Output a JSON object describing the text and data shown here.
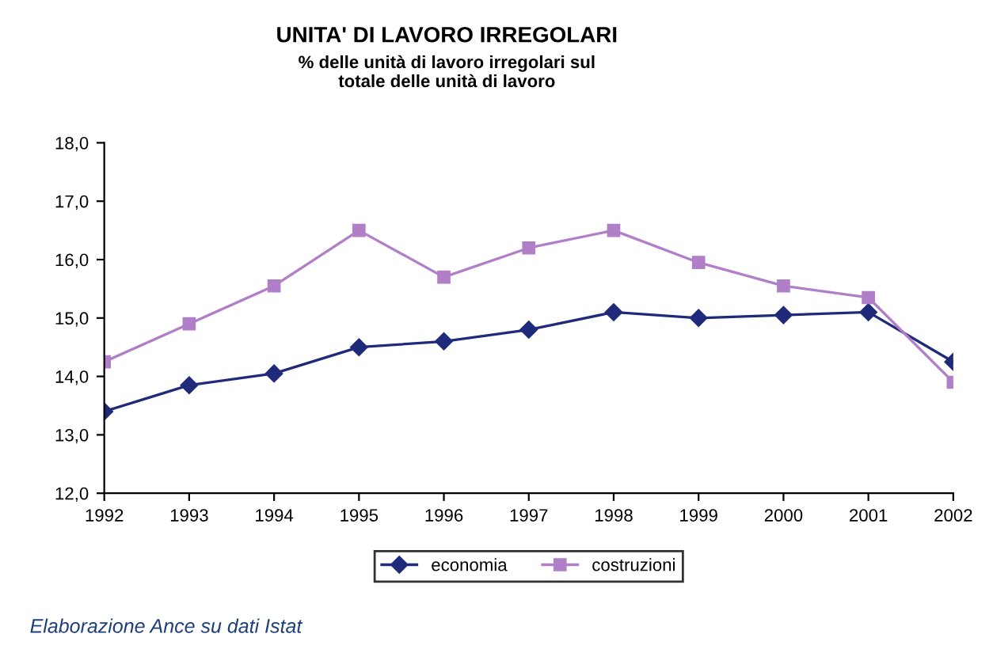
{
  "chart_data": {
    "type": "line",
    "title": "UNITA' DI LAVORO IRREGOLARI",
    "subtitle": "% delle unità di lavoro irregolari sul\ntotale delle unità di lavoro",
    "categories": [
      "1992",
      "1993",
      "1994",
      "1995",
      "1996",
      "1997",
      "1998",
      "1999",
      "2000",
      "2001",
      "2002"
    ],
    "series": [
      {
        "name": "economia",
        "color": "#1f2a7a",
        "marker": "diamond",
        "values": [
          13.4,
          13.85,
          14.05,
          14.5,
          14.6,
          14.8,
          15.1,
          15.0,
          15.05,
          15.1,
          14.25
        ]
      },
      {
        "name": "costruzioni",
        "color": "#b07fc8",
        "marker": "square",
        "values": [
          14.25,
          14.9,
          15.55,
          16.5,
          15.7,
          16.2,
          16.5,
          15.95,
          15.55,
          15.35,
          13.9
        ]
      }
    ],
    "ylim": [
      12,
      18
    ],
    "yticks": [
      {
        "value": 12,
        "label": "12,0"
      },
      {
        "value": 13,
        "label": "13,0"
      },
      {
        "value": 14,
        "label": "14,0"
      },
      {
        "value": 15,
        "label": "15,0"
      },
      {
        "value": 16,
        "label": "16,0"
      },
      {
        "value": 17,
        "label": "17,0"
      },
      {
        "value": 18,
        "label": "18,0"
      }
    ],
    "grid": false,
    "legend": "bottom",
    "line_style": "solid",
    "annotations": [
      "Elaborazione Ance su dati Istat"
    ]
  }
}
